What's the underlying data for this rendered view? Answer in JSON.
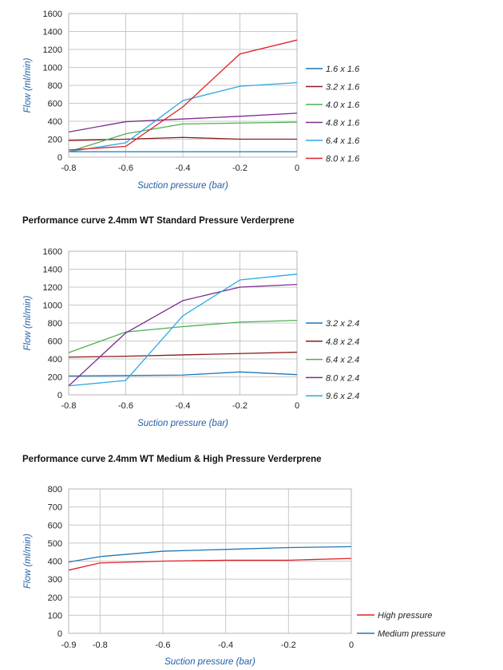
{
  "chart_data": [
    {
      "type": "line",
      "title": "",
      "xlabel": "Suction pressure (bar)",
      "ylabel": "Flow (ml/min)",
      "x": [
        -0.8,
        -0.6,
        -0.4,
        -0.2,
        0
      ],
      "x_tick_labels": [
        "-0.8",
        "-0.6",
        "-0.4",
        "-0.2",
        "0"
      ],
      "y_ticks": [
        0,
        200,
        400,
        600,
        800,
        1000,
        1200,
        1400,
        1600
      ],
      "xlim": [
        -0.8,
        0
      ],
      "ylim": [
        0,
        1600
      ],
      "grid": true,
      "legend_position": "right",
      "series": [
        {
          "name": "1.6 x 1.6",
          "color": "#1f77b4",
          "values": [
            60,
            60,
            60,
            60,
            60
          ]
        },
        {
          "name": "3.2 x 1.6",
          "color": "#8b1a1a",
          "values": [
            185,
            200,
            220,
            200,
            200
          ]
        },
        {
          "name": "4.0 x 1.6",
          "color": "#4caf50",
          "values": [
            60,
            260,
            370,
            380,
            390
          ]
        },
        {
          "name": "4.8 x 1.6",
          "color": "#7b2d8e",
          "values": [
            280,
            395,
            425,
            455,
            490
          ]
        },
        {
          "name": "6.4 x 1.6",
          "color": "#29a8e0",
          "values": [
            60,
            160,
            630,
            790,
            830
          ]
        },
        {
          "name": "8.0 x 1.6",
          "color": "#e0202a",
          "values": [
            80,
            120,
            560,
            1150,
            1305
          ]
        }
      ]
    },
    {
      "type": "line",
      "title": "Performance curve 2.4mm WT Standard Pressure Verderprene",
      "xlabel": "Suction pressure (bar)",
      "ylabel": "Flow (ml/min)",
      "x": [
        -0.8,
        -0.6,
        -0.4,
        -0.2,
        0
      ],
      "x_tick_labels": [
        "-0.8",
        "-0.6",
        "-0.4",
        "-0.2",
        "0"
      ],
      "y_ticks": [
        0,
        200,
        400,
        600,
        800,
        1000,
        1200,
        1400,
        1600
      ],
      "xlim": [
        -0.8,
        0
      ],
      "ylim": [
        0,
        1600
      ],
      "grid": true,
      "legend_position": "right",
      "series": [
        {
          "name": "3.2 x 2.4",
          "color": "#1f77b4",
          "values": [
            210,
            215,
            220,
            255,
            225
          ]
        },
        {
          "name": "4.8 x 2.4",
          "color": "#8b1a1a",
          "values": [
            420,
            430,
            445,
            460,
            475
          ]
        },
        {
          "name": "6.4 x 2.4",
          "color": "#4caf50",
          "values": [
            470,
            700,
            760,
            810,
            830
          ]
        },
        {
          "name": "8.0 x 2.4",
          "color": "#7b2d8e",
          "values": [
            100,
            690,
            1050,
            1200,
            1230
          ]
        },
        {
          "name": "9.6 x 2.4",
          "color": "#29a8e0",
          "values": [
            100,
            160,
            880,
            1280,
            1345
          ]
        }
      ]
    },
    {
      "type": "line",
      "title": "Performance curve 2.4mm WT Medium & High Pressure Verderprene",
      "xlabel": "Suction pressure (bar)",
      "ylabel": "Flow (ml/min)",
      "x": [
        -0.9,
        -0.8,
        -0.6,
        -0.4,
        -0.2,
        0
      ],
      "x_tick_labels": [
        "-0.9",
        "-0.8",
        "-0.6",
        "-0.4",
        "-0.2",
        "0"
      ],
      "y_ticks": [
        0,
        100,
        200,
        300,
        400,
        500,
        600,
        700,
        800
      ],
      "xlim": [
        -0.9,
        0
      ],
      "ylim": [
        0,
        800
      ],
      "grid": true,
      "legend_position": "bottom-right",
      "series": [
        {
          "name": "High pressure",
          "color": "#e0202a",
          "values": [
            350,
            390,
            400,
            405,
            405,
            415
          ]
        },
        {
          "name": "Medium pressure",
          "color": "#1f77b4",
          "values": [
            395,
            425,
            455,
            465,
            475,
            480
          ]
        }
      ]
    }
  ]
}
